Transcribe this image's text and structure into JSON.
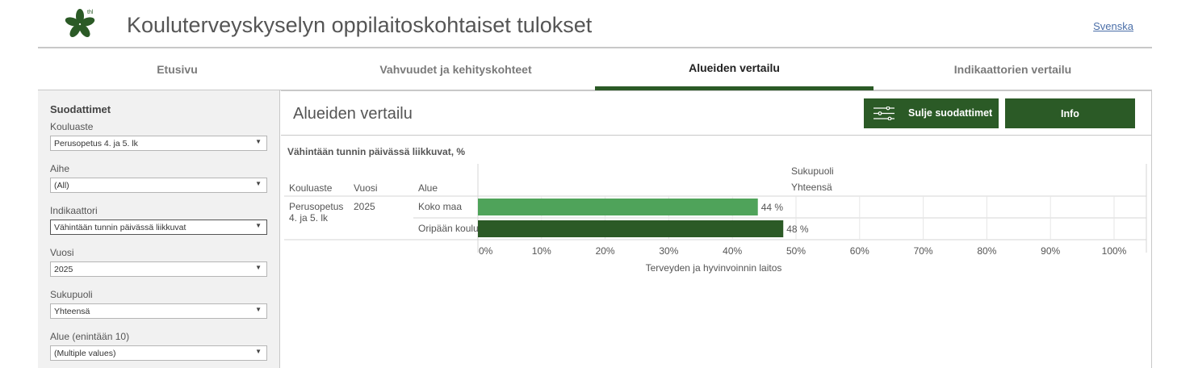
{
  "header": {
    "title": "Kouluterveyskyselyn oppilaitoskohtaiset tulokset",
    "logo_text": "thl",
    "language_link": "Svenska"
  },
  "tabs": [
    {
      "label": "Etusivu",
      "active": false
    },
    {
      "label": "Vahvuudet ja kehityskohteet",
      "active": false
    },
    {
      "label": "Alueiden vertailu",
      "active": true
    },
    {
      "label": "Indikaattorien vertailu",
      "active": false
    }
  ],
  "sidebar": {
    "title": "Suodattimet",
    "filters": [
      {
        "label": "Kouluaste",
        "value": "Perusopetus 4. ja 5. lk"
      },
      {
        "label": "Aihe",
        "value": "(All)"
      },
      {
        "label": "Indikaattori",
        "value": "Vähintään tunnin päivässä liikkuvat"
      },
      {
        "label": "Vuosi",
        "value": "2025"
      },
      {
        "label": "Sukupuoli",
        "value": "Yhteensä"
      },
      {
        "label": "Alue (enintään 10)",
        "value": "(Multiple values)"
      }
    ]
  },
  "main": {
    "title": "Alueiden vertailu",
    "close_filters_button": "Sulje suodattimet",
    "info_button": "Info"
  },
  "colors": {
    "primary_green": "#2b5a26",
    "bar_light": "#4fa35a",
    "bar_dark": "#2b5a26"
  },
  "chart_data": {
    "type": "bar",
    "title": "Vähintään tunnin päivässä liikkuvat, %",
    "columns": {
      "kouluaste": "Kouluaste",
      "vuosi": "Vuosi",
      "alue": "Alue"
    },
    "group_header": "Sukupuoli",
    "group_value": "Yhteensä",
    "kouluaste_value": "Perusopetus 4. ja 5. lk",
    "vuosi_value": "2025",
    "categories": [
      "Koko maa",
      "Oripään koulu"
    ],
    "values": [
      44,
      48
    ],
    "value_labels": [
      "44 %",
      "48 %"
    ],
    "bar_colors": [
      "#4fa35a",
      "#2b5a26"
    ],
    "x_ticks": [
      "0%",
      "10%",
      "20%",
      "30%",
      "40%",
      "50%",
      "60%",
      "70%",
      "80%",
      "90%",
      "100%"
    ],
    "xlim": [
      0,
      105
    ],
    "source": "Terveyden ja hyvinvoinnin laitos"
  }
}
